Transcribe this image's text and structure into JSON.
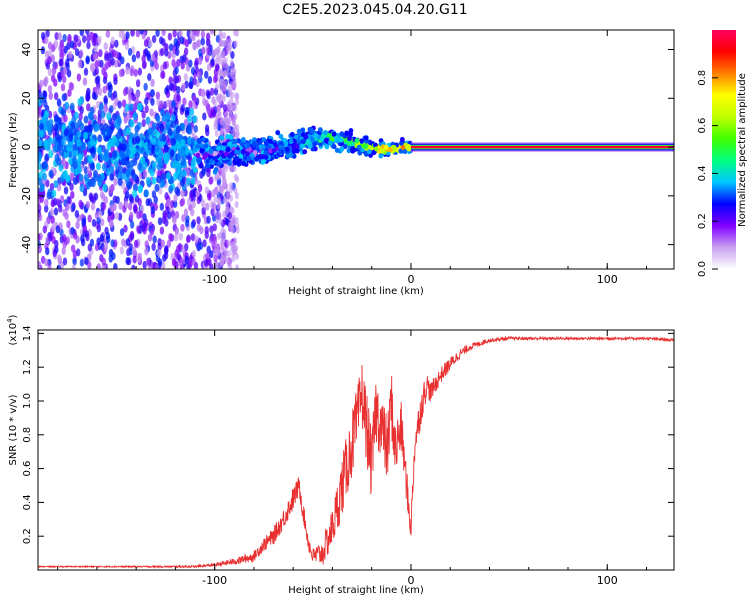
{
  "title": "C2E5.2023.045.04.20.G11",
  "chart_data": [
    {
      "type": "heatmap",
      "xlabel": "Height of straight line (km)",
      "ylabel": "Frequency (Hz)",
      "xlim": [
        -190,
        134
      ],
      "ylim": [
        -50,
        48
      ],
      "xticks": [
        -100,
        0,
        100
      ],
      "yticks": [
        -40,
        -20,
        0,
        20,
        40
      ],
      "colorbar": {
        "label": "Normalized spectral amplitude",
        "range": [
          0.0,
          1.0
        ],
        "ticks": [
          0.0,
          0.2,
          0.4,
          0.6,
          0.8
        ],
        "colors": [
          "#ffffff",
          "#c8a0f0",
          "#8000ff",
          "#0000ff",
          "#00c8ff",
          "#00ff80",
          "#40ff00",
          "#c0ff00",
          "#ffff00",
          "#ff8000",
          "#ff0000",
          "#ff0060"
        ]
      },
      "signal_trace": {
        "x": [
          -110,
          -100,
          -90,
          -80,
          -70,
          -60,
          -55,
          -50,
          -45,
          -40,
          -35,
          -30,
          -25,
          -20,
          -15,
          -10,
          -5,
          0
        ],
        "y": [
          -3,
          -3,
          -2,
          -2,
          -1,
          1,
          2,
          3,
          4,
          4,
          3,
          2,
          1,
          0,
          -1,
          -1,
          0,
          0
        ],
        "level": [
          0.3,
          0.3,
          0.35,
          0.35,
          0.4,
          0.45,
          0.5,
          0.5,
          0.55,
          0.55,
          0.6,
          0.65,
          0.7,
          0.75,
          0.8,
          0.8,
          0.85,
          0.9
        ]
      },
      "carrier": {
        "y": 0,
        "from_x": 0,
        "to_x": 134,
        "level": 0.95
      },
      "colorbar_position": "right"
    },
    {
      "type": "line",
      "xlabel": "Height of straight line (km)",
      "ylabel": "SNR (10 * v/v)",
      "y_multiplier": "(x10",
      "y_multiplier_exp": "4",
      "y_multiplier_close": ")",
      "xlim": [
        -190,
        134
      ],
      "ylim": [
        0,
        1.42
      ],
      "xticks": [
        -100,
        0,
        100
      ],
      "yticks": [
        0.2,
        0.4,
        0.6,
        0.8,
        1.0,
        1.2,
        1.4
      ],
      "series": [
        {
          "color": "#e83030",
          "x": [
            -190,
            -140,
            -110,
            -100,
            -90,
            -80,
            -75,
            -70,
            -65,
            -60,
            -57,
            -55,
            -52,
            -50,
            -45,
            -40,
            -35,
            -30,
            -27,
            -25,
            -22,
            -20,
            -18,
            -15,
            -12,
            -10,
            -8,
            -5,
            -3,
            -1,
            0,
            2,
            5,
            8,
            10,
            15,
            20,
            25,
            30,
            35,
            40,
            50,
            60,
            80,
            100,
            120,
            134
          ],
          "y": [
            0.02,
            0.02,
            0.02,
            0.03,
            0.05,
            0.08,
            0.15,
            0.2,
            0.3,
            0.42,
            0.5,
            0.35,
            0.15,
            0.08,
            0.1,
            0.25,
            0.5,
            0.75,
            0.9,
            1.05,
            0.8,
            0.6,
            0.95,
            0.85,
            0.7,
            1.0,
            0.7,
            0.85,
            0.6,
            0.35,
            0.25,
            0.75,
            0.95,
            1.1,
            1.05,
            1.15,
            1.22,
            1.28,
            1.32,
            1.34,
            1.36,
            1.37,
            1.37,
            1.37,
            1.37,
            1.37,
            1.36
          ],
          "noise": [
            0.003,
            0.004,
            0.006,
            0.01,
            0.02,
            0.03,
            0.04,
            0.05,
            0.06,
            0.07,
            0.06,
            0.06,
            0.05,
            0.05,
            0.08,
            0.12,
            0.18,
            0.2,
            0.2,
            0.2,
            0.22,
            0.2,
            0.2,
            0.2,
            0.2,
            0.2,
            0.18,
            0.15,
            0.12,
            0.1,
            0.08,
            0.1,
            0.1,
            0.08,
            0.06,
            0.05,
            0.04,
            0.03,
            0.02,
            0.015,
            0.012,
            0.01,
            0.008,
            0.008,
            0.008,
            0.008,
            0.008
          ]
        }
      ],
      "grid": false
    }
  ]
}
